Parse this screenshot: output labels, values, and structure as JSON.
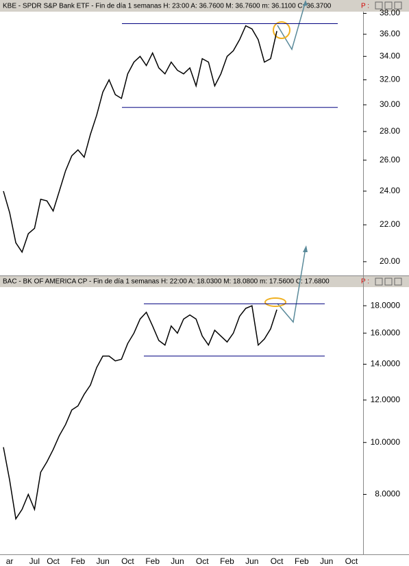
{
  "chart_data": [
    {
      "type": "line",
      "title": "KBE - SPDR S&P Bank ETF - Fin de día 1 semanas  H: 23:00  A: 36.7600  M: 36.7600  m: 36.1100  C: 36.3700",
      "status": "P :",
      "log_scale": true,
      "ylim": [
        19.3,
        38.1
      ],
      "yticks": [
        {
          "value": 20,
          "label": "20.00"
        },
        {
          "value": 22,
          "label": "22.00"
        },
        {
          "value": 24,
          "label": "24.00"
        },
        {
          "value": 26,
          "label": "26.00"
        },
        {
          "value": 28,
          "label": "28.00"
        },
        {
          "value": 30,
          "label": "30.00"
        },
        {
          "value": 32,
          "label": "32.00"
        },
        {
          "value": 34,
          "label": "34.00"
        },
        {
          "value": 36,
          "label": "36.00"
        },
        {
          "value": 38,
          "label": "38.00"
        }
      ],
      "hlines": [
        37.0,
        29.8
      ],
      "hline_color": "#000080",
      "series": [
        {
          "color": "#000000",
          "values": [
            24.0,
            22.7,
            21.0,
            20.5,
            21.5,
            21.8,
            23.5,
            23.4,
            22.8,
            24.0,
            25.3,
            26.3,
            26.7,
            26.2,
            27.8,
            29.2,
            31.0,
            32.0,
            30.8,
            30.5,
            32.5,
            33.5,
            34.0,
            33.2,
            34.3,
            33.0,
            32.5,
            33.5,
            32.8,
            32.5,
            33.0,
            31.5,
            33.8,
            33.5,
            31.5,
            32.5,
            34.0,
            34.5,
            35.5,
            36.8,
            36.5,
            35.5,
            33.5,
            33.8,
            36.3,
            null,
            null,
            null,
            null,
            null,
            null,
            null,
            null,
            null,
            null,
            null,
            null,
            null
          ]
        }
      ]
    },
    {
      "type": "line",
      "title": "BAC - BK OF AMERICA CP - Fin de día 1 semanas  H: 22:00  A: 18.0300  M: 18.0800  m: 17.5600  C: 17.6800",
      "status": "P :",
      "log_scale": true,
      "ylim": [
        6.2,
        19.5
      ],
      "yticks": [
        {
          "value": 8,
          "label": "8.0000"
        },
        {
          "value": 10,
          "label": "10.0000"
        },
        {
          "value": 12,
          "label": "12.0000"
        },
        {
          "value": 14,
          "label": "14.0000"
        },
        {
          "value": 16,
          "label": "16.0000"
        },
        {
          "value": 18,
          "label": "18.0000"
        }
      ],
      "hlines": [
        18.15,
        14.5
      ],
      "hline_color": "#000080",
      "categories": [
        null,
        "ar",
        null,
        null,
        null,
        "Jul",
        null,
        null,
        "Oct",
        null,
        null,
        null,
        "Feb",
        null,
        null,
        null,
        "Jun",
        null,
        null,
        null,
        "Oct",
        null,
        null,
        null,
        "Feb",
        null,
        null,
        null,
        "Jun",
        null,
        null,
        null,
        "Oct",
        null,
        null,
        null,
        "Feb",
        null,
        null,
        null,
        "Jun",
        null,
        null,
        null,
        "Oct",
        null,
        null,
        null,
        "Feb",
        null,
        null,
        null,
        "Jun",
        null,
        null,
        null,
        "Oct",
        null
      ],
      "series": [
        {
          "color": "#000000",
          "values": [
            9.8,
            8.5,
            7.2,
            7.5,
            8.0,
            7.5,
            8.8,
            9.2,
            9.7,
            10.3,
            10.8,
            11.5,
            11.7,
            12.3,
            12.8,
            13.8,
            14.5,
            14.5,
            14.2,
            14.3,
            15.3,
            16.0,
            17.0,
            17.5,
            16.5,
            15.5,
            15.2,
            16.5,
            16.0,
            17.0,
            17.3,
            17.0,
            15.8,
            15.2,
            16.2,
            15.8,
            15.4,
            16.0,
            17.2,
            17.8,
            18.0,
            15.2,
            15.6,
            16.3,
            17.7,
            null,
            null,
            null,
            null,
            null,
            null,
            null,
            null,
            null,
            null,
            null,
            null,
            null
          ]
        }
      ]
    }
  ]
}
